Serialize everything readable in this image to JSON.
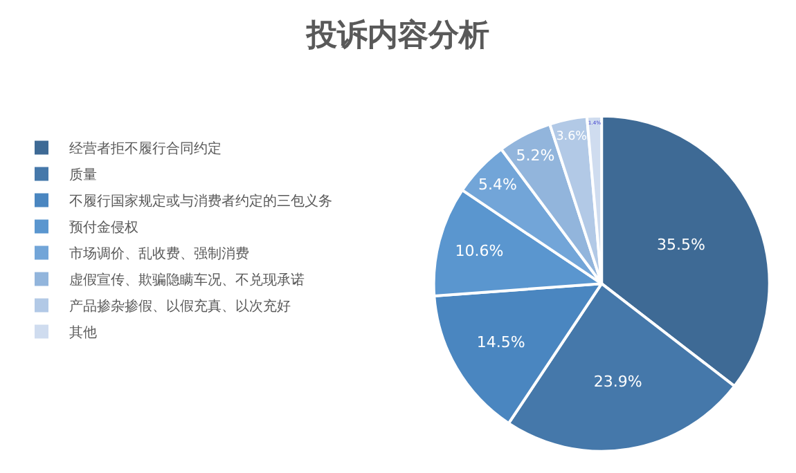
{
  "chart_data": {
    "type": "pie",
    "title": "投诉内容分析",
    "categories": [
      "经营者拒不履行合同约定",
      "质量",
      "不履行国家规定或与消费者约定的三包义务",
      "预付金侵权",
      "市场调价、乱收费、强制消费",
      "虚假宣传、欺骗隐瞒车况、不兑现承诺",
      "产品掺杂掺假、以假充真、以次充好",
      "其他"
    ],
    "values": [
      35.5,
      23.9,
      14.5,
      10.6,
      5.4,
      5.2,
      3.6,
      1.4
    ],
    "colors": [
      "#3e6a95",
      "#4578aa",
      "#4a86c0",
      "#5a96cf",
      "#72a5d8",
      "#92b5dc",
      "#b2c9e6",
      "#cfdcef"
    ],
    "value_labels": [
      "35.5%",
      "23.9%",
      "14.5%",
      "10.6%",
      "5.4%",
      "5.2%",
      "3.6%",
      "1.4%"
    ],
    "legend": "left"
  }
}
